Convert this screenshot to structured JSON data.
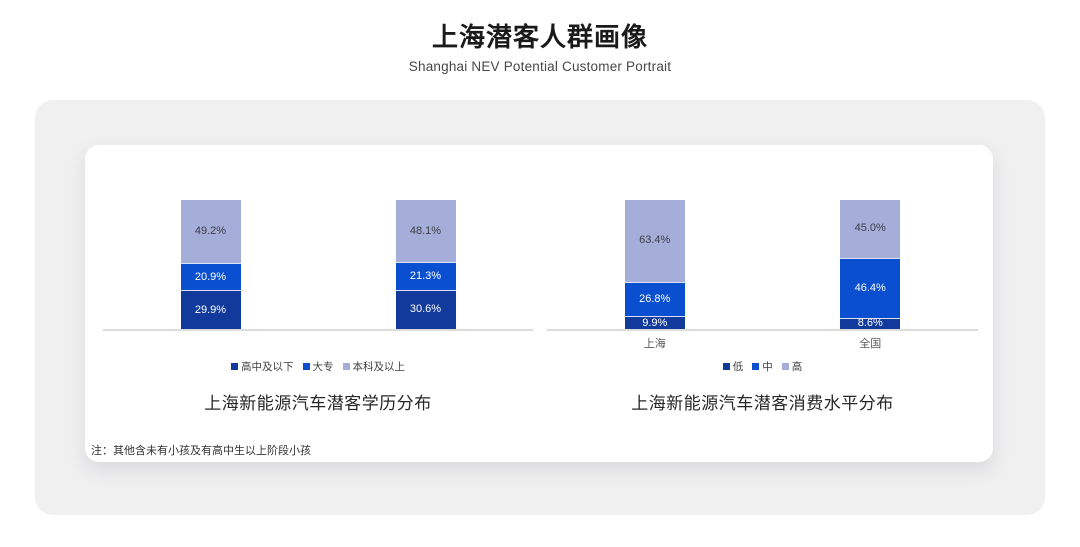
{
  "page": {
    "title": "上海潜客人群画像",
    "subtitle": "Shanghai NEV Potential Customer Portrait",
    "note": "注：其他含未有小孩及有高中生以上阶段小孩"
  },
  "colors": {
    "seg_dark": "#123a9d",
    "seg_mid": "#0b4fd1",
    "seg_light": "#a5aed9",
    "axis_line": "#dcdcdc",
    "outer_card_bg": "#f0f0f1",
    "panel_bg": "#ffffff"
  },
  "chart_data": [
    {
      "type": "bar",
      "stacked": true,
      "title": "上海新能源汽车潜客学历分布",
      "categories": [
        "",
        ""
      ],
      "series": [
        {
          "name": "高中及以下",
          "color_key": "seg_dark",
          "values": [
            29.9,
            30.6
          ]
        },
        {
          "name": "大专",
          "color_key": "seg_mid",
          "values": [
            20.9,
            21.3
          ]
        },
        {
          "name": "本科及以上",
          "color_key": "seg_light",
          "values": [
            49.2,
            48.1
          ]
        }
      ],
      "value_suffix": "%",
      "ylim": [
        0,
        100
      ],
      "grid": false,
      "legend_position": "bottom"
    },
    {
      "type": "bar",
      "stacked": true,
      "title": "上海新能源汽车潜客消费水平分布",
      "categories": [
        "上海",
        "全国"
      ],
      "series": [
        {
          "name": "低",
          "color_key": "seg_dark",
          "values": [
            9.9,
            8.6
          ]
        },
        {
          "name": "中",
          "color_key": "seg_mid",
          "values": [
            26.8,
            46.4
          ]
        },
        {
          "name": "高",
          "color_key": "seg_light",
          "values": [
            63.4,
            45.0
          ]
        }
      ],
      "value_suffix": "%",
      "ylim": [
        0,
        100
      ],
      "grid": false,
      "legend_position": "bottom"
    }
  ]
}
